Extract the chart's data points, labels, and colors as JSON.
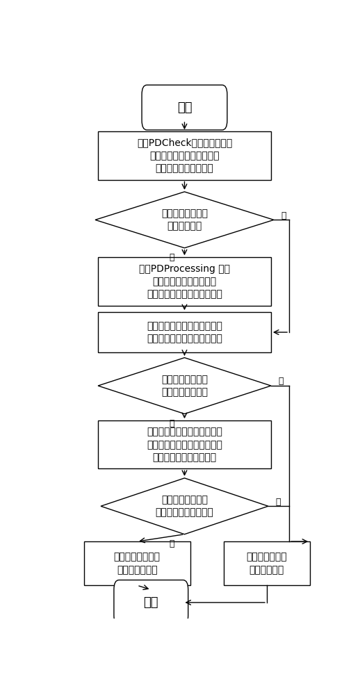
{
  "bg_color": "#ffffff",
  "nodes": {
    "start": {
      "label": "开始",
      "type": "rounded_rect"
    },
    "box1": {
      "label": "使用PDCheck获取变压器铁心\n和夹件接地引线处高频信号\n的相位谱图和分类谱图",
      "type": "rect"
    },
    "diamond1": {
      "label": "分类谱图是否存在\n明显分块聚集",
      "type": "diamond"
    },
    "box2": {
      "label": "使用PDProcessing 软件\n对分类谱图进行聚簇分离\n按信号聚集情况分为不同区块",
      "type": "rect"
    },
    "box3": {
      "label": "将（各区块对应的）相位谱图\n与典型局放相位谱图进行比对",
      "type": "rect"
    },
    "diamond2": {
      "label": "相位谱图是否存在\n局部放电典型特征",
      "type": "diamond"
    },
    "box4": {
      "label": "在放电信号聚集处选取典型点\n提取其时域和频域图像，与典\n型局放时频图像进行比对",
      "type": "rect"
    },
    "diamond3": {
      "label": "时域频域图像是否\n存在局部放电典型特征",
      "type": "diamond"
    },
    "box5": {
      "label": "该放电信号高度疑\n似局部放电信号",
      "type": "rect"
    },
    "box6": {
      "label": "该放电信号不是\n局部放电信号",
      "type": "rect"
    },
    "end": {
      "label": "结束",
      "type": "rounded_rect"
    }
  },
  "yes_label": "是",
  "no_label": "否",
  "font_size_node": 10,
  "font_size_terminal": 13,
  "font_size_label": 9
}
